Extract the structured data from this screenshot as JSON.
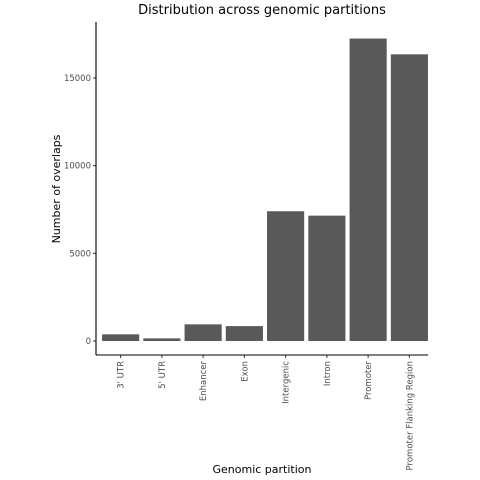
{
  "chart_data": {
    "type": "bar",
    "title": "Distribution across genomic partitions",
    "xlabel": "Genomic partition",
    "ylabel": "Number of overlaps",
    "categories": [
      "3' UTR",
      "5' UTR",
      "Enhancer",
      "Exon",
      "Intergenic",
      "Intron",
      "Promoter",
      "Promoter Flanking Region"
    ],
    "values": [
      380,
      150,
      950,
      850,
      7400,
      7150,
      17250,
      16350
    ],
    "yticks": [
      0,
      5000,
      10000,
      15000
    ],
    "ylim": [
      0,
      17700
    ],
    "bar_color": "#595959",
    "grid": false
  }
}
